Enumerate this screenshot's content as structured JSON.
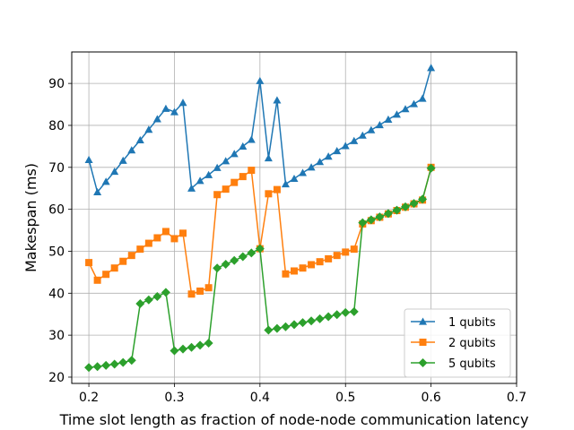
{
  "chart_data": {
    "type": "line",
    "title": "",
    "xlabel": "Time slot length as fraction of node-node communication latency",
    "ylabel": "Makespan (ms)",
    "xlim": [
      0.18,
      0.7
    ],
    "ylim": [
      18.5,
      97.5
    ],
    "xticks": [
      0.2,
      0.3,
      0.4,
      0.5,
      0.6,
      0.7
    ],
    "xtick_labels": [
      "0.2",
      "0.3",
      "0.4",
      "0.5",
      "0.6",
      "0.7"
    ],
    "yticks": [
      20,
      30,
      40,
      50,
      60,
      70,
      80,
      90
    ],
    "ytick_labels": [
      "20",
      "30",
      "40",
      "50",
      "60",
      "70",
      "80",
      "90"
    ],
    "grid": true,
    "legend_position": "lower-right",
    "x": [
      0.2,
      0.21,
      0.22,
      0.23,
      0.24,
      0.25,
      0.26,
      0.27,
      0.28,
      0.29,
      0.3,
      0.31,
      0.32,
      0.33,
      0.34,
      0.35,
      0.36,
      0.37,
      0.38,
      0.39,
      0.4,
      0.41,
      0.42,
      0.43,
      0.44,
      0.45,
      0.46,
      0.47,
      0.48,
      0.49,
      0.5,
      0.51,
      0.52,
      0.53,
      0.54,
      0.55,
      0.56,
      0.57,
      0.58,
      0.59,
      0.6
    ],
    "series": [
      {
        "name": "1 qubits",
        "color": "#1f77b4",
        "marker": "triangle",
        "values": [
          71.8,
          64.1,
          66.6,
          69.0,
          71.6,
          74.1,
          76.5,
          79.0,
          81.5,
          84.0,
          83.2,
          85.4,
          65.0,
          66.8,
          68.2,
          69.9,
          71.5,
          73.2,
          75.0,
          76.6,
          90.6,
          72.2,
          86.0,
          66.0,
          67.3,
          68.7,
          70.0,
          71.3,
          72.6,
          73.9,
          75.1,
          76.3,
          77.6,
          78.9,
          80.1,
          81.4,
          82.6,
          83.9,
          85.1,
          86.4,
          93.7
        ]
      },
      {
        "name": "2 qubits",
        "color": "#ff7f0e",
        "marker": "square",
        "values": [
          47.3,
          43.1,
          44.5,
          46.0,
          47.6,
          49.0,
          50.5,
          51.9,
          53.2,
          54.7,
          53.0,
          54.3,
          39.8,
          40.5,
          41.3,
          63.5,
          64.8,
          66.4,
          67.8,
          69.3,
          50.6,
          63.7,
          64.7,
          44.6,
          45.3,
          46.0,
          46.8,
          47.5,
          48.2,
          49.0,
          49.8,
          50.5,
          56.5,
          57.3,
          58.1,
          58.9,
          59.7,
          60.5,
          61.3,
          62.2,
          70.0
        ]
      },
      {
        "name": "5 qubits",
        "color": "#2ca02c",
        "marker": "diamond",
        "values": [
          22.3,
          22.5,
          22.8,
          23.1,
          23.5,
          24.0,
          37.5,
          38.4,
          39.2,
          40.2,
          26.3,
          26.7,
          27.1,
          27.6,
          28.1,
          46.0,
          46.9,
          47.8,
          48.7,
          49.6,
          50.6,
          31.2,
          31.6,
          32.0,
          32.5,
          33.0,
          33.4,
          33.9,
          34.4,
          34.9,
          35.4,
          35.6,
          56.8,
          57.5,
          58.2,
          59.0,
          59.8,
          60.6,
          61.4,
          62.4,
          69.8
        ]
      }
    ]
  }
}
